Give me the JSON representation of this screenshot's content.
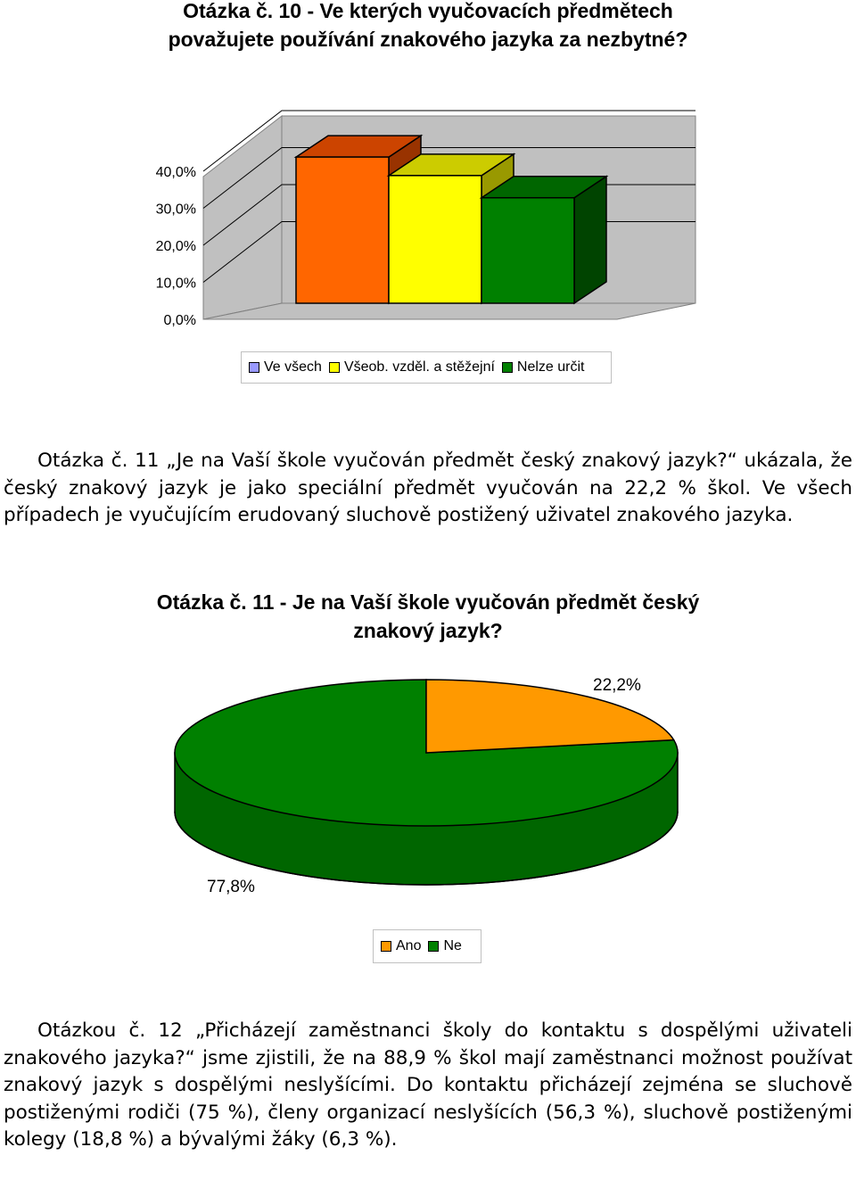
{
  "chart1": {
    "title": "Otázka č. 10 - Ve kterých vyučovacích předmětech považujete používání znakového jazyka za nezbytné?",
    "chart_data": {
      "type": "bar",
      "categories": [
        "Ve všech",
        "Všeob. vzděl. a stěžejní",
        "Nelze určit"
      ],
      "values": [
        39.5,
        34.5,
        28.5
      ],
      "colors": [
        "#ff6600",
        "#ffff00",
        "#008000"
      ],
      "legend_swatches": [
        "#9999ff",
        "#ffff00",
        "#008000"
      ],
      "y_ticks": [
        "40,0%",
        "30,0%",
        "20,0%",
        "10,0%",
        "0,0%"
      ],
      "ylim": [
        0,
        40
      ],
      "legend_position": "bottom",
      "grid": true
    }
  },
  "paragraph1": {
    "text": "Otázka č. 11 „Je na Vaší škole vyučován předmět český znakový jazyk?“ ukázala, že český znakový jazyk je jako speciální předmět vyučován na 22,2 % škol. Ve všech případech je vyučujícím erudovaný sluchově postižený uživatel znakového jazyka."
  },
  "chart2": {
    "title": "Otázka č. 11 - Je na Vaší škole vyučován předmět český znakový jazyk?",
    "chart_data": {
      "type": "pie",
      "categories": [
        "Ano",
        "Ne"
      ],
      "values": [
        22.2,
        77.8
      ],
      "data_labels": [
        "22,2%",
        "77,8%"
      ],
      "colors": [
        "#ff9900",
        "#008000"
      ],
      "legend_position": "bottom"
    }
  },
  "paragraph2": {
    "text": "Otázkou č. 12 „Přicházejí zaměstnanci školy do kontaktu s dospělými uživateli znakového jazyka?“ jsme zjistili, že na 88,9 % škol mají zaměstnanci možnost používat znakový jazyk s dospělými neslyšícími. Do kontaktu přicházejí zejména se sluchově postiženými rodiči (75 %), členy organizací neslyšících (56,3 %), sluchově postiženými kolegy (18,8 %) a bývalými žáky (6,3 %)."
  }
}
